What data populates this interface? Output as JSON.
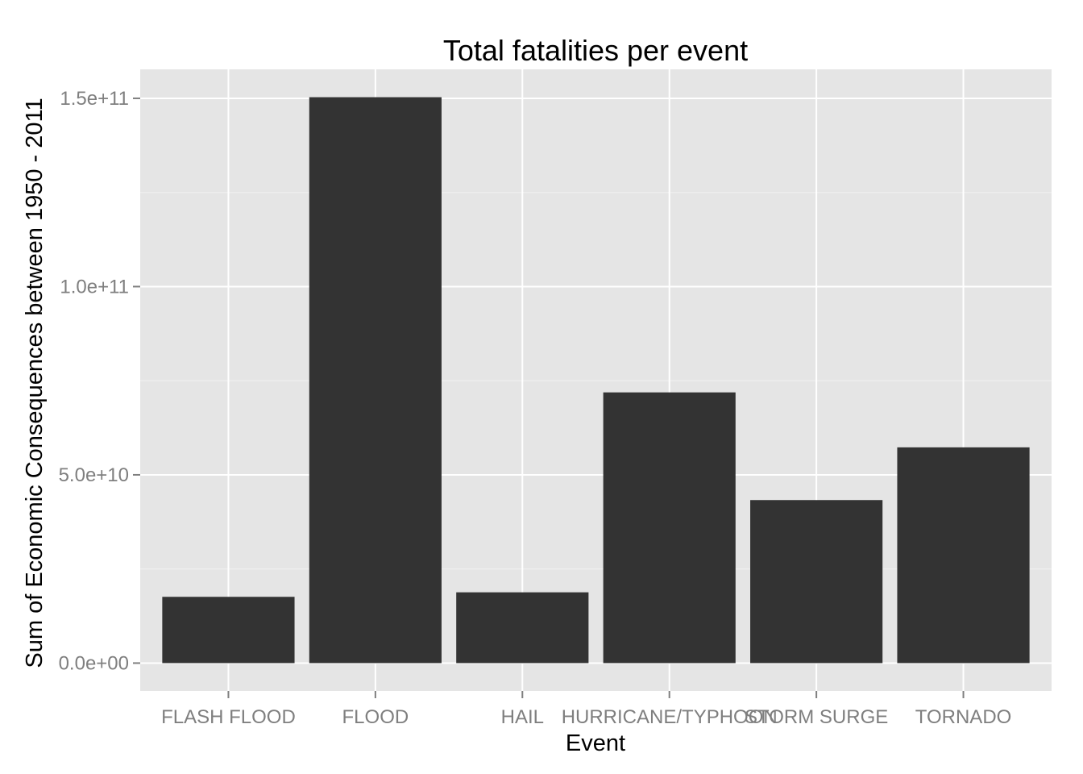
{
  "chart_data": {
    "type": "bar",
    "title": "Total fatalities per event",
    "xlabel": "Event",
    "ylabel": "Sum of Economic Consequences between 1950 - 2011",
    "categories": [
      "FLASH FLOOD",
      "FLOOD",
      "HAIL",
      "HURRICANE/TYPHOON",
      "STORM SURGE",
      "TORNADO"
    ],
    "values": [
      17600000000,
      150300000000,
      18800000000,
      71900000000,
      43300000000,
      57300000000
    ],
    "ylim": [
      -7400000000,
      157700000000
    ],
    "y_ticks": [
      0,
      50000000000,
      100000000000,
      150000000000
    ],
    "y_tick_labels": [
      "0.0e+00",
      "5.0e+10",
      "1.0e+11",
      "1.5e+11"
    ],
    "grid": true,
    "colors": {
      "panel": "#e5e5e5",
      "grid_major": "#ffffff",
      "grid_minor": "#f2f2f2",
      "bar": "#333333",
      "tick": "#7f7f7f"
    }
  }
}
